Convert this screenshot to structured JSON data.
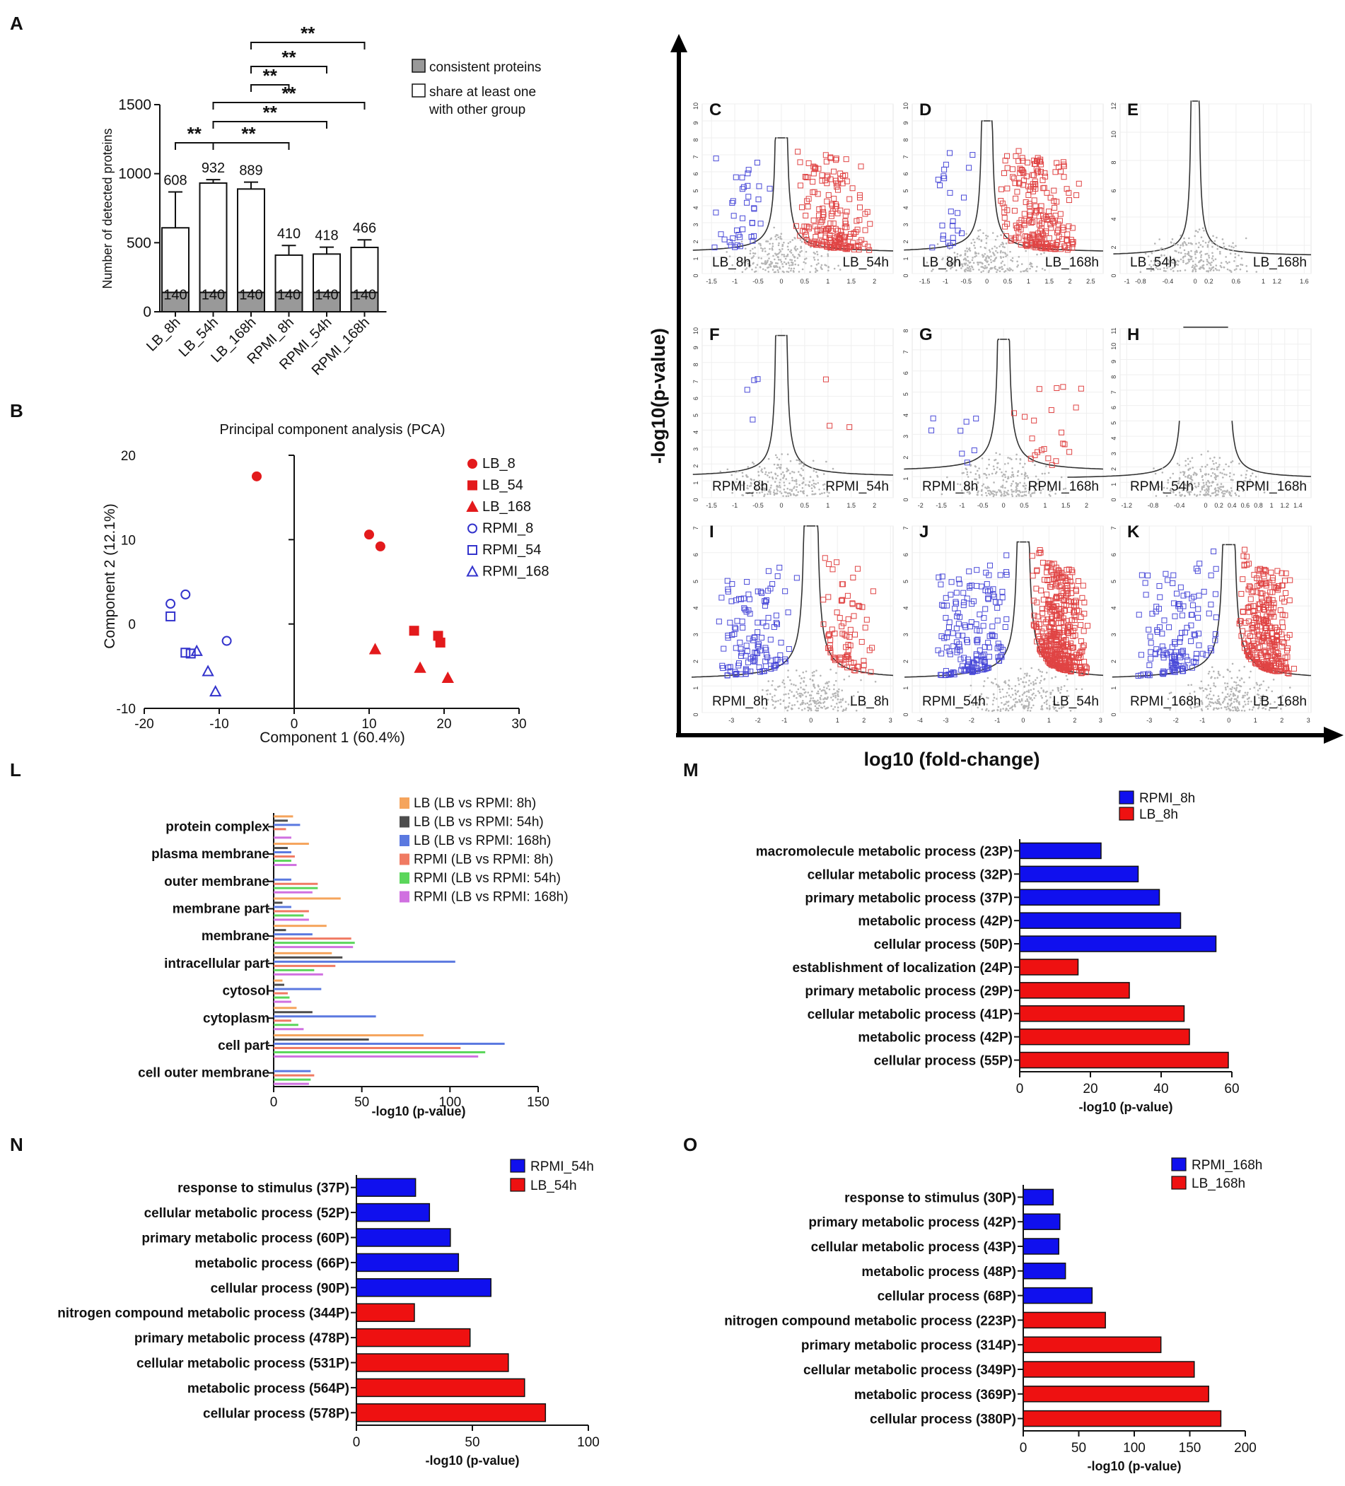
{
  "chart_data": [
    {
      "panel": "A",
      "type": "bar",
      "ylabel": "Number of detected proteins",
      "ylim": [
        0,
        1500
      ],
      "yticks": [
        0,
        500,
        1000,
        1500
      ],
      "categories": [
        "LB_8h",
        "LB_54h",
        "LB_168h",
        "RPMI_8h",
        "RPMI_54h",
        "RPMI_168h"
      ],
      "totals": [
        608,
        932,
        889,
        410,
        418,
        466
      ],
      "total_labels": [
        "608",
        "932",
        "889",
        "410",
        "418",
        "466"
      ],
      "errors": [
        260,
        25,
        50,
        70,
        50,
        55
      ],
      "consistent": [
        140,
        140,
        140,
        140,
        140,
        140
      ],
      "consistent_labels": [
        "140",
        "140",
        "140",
        "140",
        "140",
        "140"
      ],
      "legend": [
        "consistent proteins",
        "share at least one\nwith other group"
      ],
      "significance": [
        {
          "from": 1,
          "to": 5,
          "label": "**"
        },
        {
          "from": 1,
          "to": 4,
          "label": "**"
        },
        {
          "from": 1,
          "to": 3,
          "label": "**"
        },
        {
          "from": 0,
          "to": 5,
          "label": "**"
        },
        {
          "from": 0,
          "to": 4,
          "label": "**"
        },
        {
          "from": 0,
          "to": 1,
          "label": "**"
        },
        {
          "from": 1,
          "to": 3,
          "label": "**"
        }
      ],
      "colors": {
        "consistent": "#999999",
        "share": "#ffffff"
      }
    },
    {
      "panel": "B",
      "type": "scatter",
      "title": "Principal component analysis (PCA)",
      "xlabel": "Component 1 (60.4%)",
      "ylabel": "Component 2 (12.1%)",
      "xlim": [
        -20,
        30
      ],
      "ylim": [
        -10,
        20
      ],
      "xticks": [
        -20,
        -10,
        0,
        10,
        20,
        30
      ],
      "yticks": [
        -10,
        0,
        10,
        20
      ],
      "series": [
        {
          "name": "LB_8",
          "marker": "circle",
          "filled": true,
          "color": "#e31a1c",
          "points": [
            [
              -5,
              17.5
            ],
            [
              10,
              10.6
            ],
            [
              11.5,
              9.2
            ]
          ]
        },
        {
          "name": "LB_54",
          "marker": "square",
          "filled": true,
          "color": "#e31a1c",
          "points": [
            [
              16,
              -0.8
            ],
            [
              19.2,
              -1.4
            ],
            [
              19.5,
              -2.2
            ]
          ]
        },
        {
          "name": "LB_168",
          "marker": "triangle",
          "filled": true,
          "color": "#e31a1c",
          "points": [
            [
              10.8,
              -3
            ],
            [
              16.8,
              -5.2
            ],
            [
              20.5,
              -6.4
            ]
          ]
        },
        {
          "name": "RPMI_8",
          "marker": "circle",
          "filled": false,
          "color": "#3333cc",
          "points": [
            [
              -16.5,
              2.4
            ],
            [
              -14.5,
              3.5
            ],
            [
              -9,
              -2
            ]
          ]
        },
        {
          "name": "RPMI_54",
          "marker": "square",
          "filled": false,
          "color": "#3333cc",
          "points": [
            [
              -16.5,
              0.9
            ],
            [
              -14.5,
              -3.4
            ],
            [
              -13.8,
              -3.5
            ]
          ]
        },
        {
          "name": "RPMI_168",
          "marker": "triangle",
          "filled": false,
          "color": "#3333cc",
          "points": [
            [
              -13,
              -3.2
            ],
            [
              -11.5,
              -5.6
            ],
            [
              -10.5,
              -8
            ]
          ]
        }
      ]
    },
    {
      "panel": "C-K",
      "type": "scatter",
      "subtype": "volcano",
      "xlabel": "log10 (fold-change)",
      "ylabel": "-log10(p-value)",
      "panels": [
        {
          "letter": "C",
          "left": "LB_8h",
          "right": "LB_54h",
          "xlim": [
            -1.7,
            2.4
          ],
          "ylim": [
            0,
            10
          ],
          "xticks": [
            "-1.5",
            "-1",
            "-0.5",
            "0",
            "0.5",
            "1",
            "1.5",
            "2"
          ],
          "xvals": [
            -1.5,
            -1,
            -0.5,
            0,
            0.5,
            1,
            1.5,
            2
          ],
          "yticks": [
            "0",
            "1",
            "2",
            "3",
            "4",
            "5",
            "6",
            "7",
            "8",
            "9",
            "10"
          ],
          "cap": 8,
          "fc0": 0.1,
          "blue": 40,
          "red": 200
        },
        {
          "letter": "D",
          "left": "LB_8h",
          "right": "LB_168h",
          "xlim": [
            -1.8,
            2.8
          ],
          "ylim": [
            0,
            10
          ],
          "xticks": [
            "-1.5",
            "-1",
            "-0.5",
            "0",
            "0.5",
            "1",
            "1.5",
            "2",
            "2.5"
          ],
          "xvals": [
            -1.5,
            -1,
            -0.5,
            0,
            0.5,
            1,
            1.5,
            2,
            2.5
          ],
          "yticks": [
            "0",
            "1",
            "2",
            "3",
            "4",
            "5",
            "6",
            "7",
            "8",
            "9",
            "10"
          ],
          "cap": 9,
          "fc0": 0.1,
          "blue": 25,
          "red": 230
        },
        {
          "letter": "E",
          "left": "LB_54h",
          "right": "LB_168h",
          "xlim": [
            -1.1,
            1.7
          ],
          "ylim": [
            0,
            12
          ],
          "xticks": [
            "-1",
            "-0.8",
            "-0.4",
            "0",
            "0.2",
            "0.6",
            "1",
            "1.2",
            "1.6"
          ],
          "xvals": [
            -1,
            -0.8,
            -0.4,
            0,
            0.2,
            0.6,
            1,
            1.2,
            1.6
          ],
          "yticks": [
            "0",
            "2",
            "4",
            "6",
            "8",
            "10",
            "12"
          ],
          "cap": 12.2,
          "fc0": 0.05,
          "blue": 0,
          "red": 0
        },
        {
          "letter": "F",
          "left": "RPMI_8h",
          "right": "RPMI_54h",
          "xlim": [
            -1.7,
            2.4
          ],
          "ylim": [
            0,
            10
          ],
          "xticks": [
            "-1.5",
            "-1",
            "-0.5",
            "0",
            "0.5",
            "1",
            "1.5",
            "2"
          ],
          "xvals": [
            -1.5,
            -1,
            -0.5,
            0,
            0.5,
            1,
            1.5,
            2
          ],
          "yticks": [
            "0",
            "1",
            "2",
            "3",
            "4",
            "5",
            "6",
            "7",
            "8",
            "9",
            "10"
          ],
          "cap": 9.6,
          "fc0": 0.1,
          "blue": 4,
          "red": 3
        },
        {
          "letter": "G",
          "left": "RPMI_8h",
          "right": "RPMI_168h",
          "xlim": [
            -2.2,
            2.4
          ],
          "ylim": [
            0,
            8
          ],
          "xticks": [
            "-2",
            "-1.5",
            "-1",
            "-0.5",
            "0",
            "0.5",
            "1",
            "1.5",
            "2"
          ],
          "xvals": [
            -2,
            -1.5,
            -1,
            -0.5,
            0,
            0.5,
            1,
            1.5,
            2
          ],
          "yticks": [
            "0",
            "1",
            "2",
            "3",
            "4",
            "5",
            "6",
            "7",
            "8"
          ],
          "cap": 7.5,
          "fc0": 0.1,
          "blue": 8,
          "red": 22
        },
        {
          "letter": "H",
          "left": "RPMI_54h",
          "right": "RPMI_168h",
          "xlim": [
            -1.3,
            1.6
          ],
          "ylim": [
            0,
            11
          ],
          "xticks": [
            "-1.2",
            "-0.8",
            "-0.4",
            "0",
            "0.2",
            "0.4",
            "0.6",
            "0.8",
            "1",
            "1.2",
            "1.4"
          ],
          "xvals": [
            -1.2,
            -0.8,
            -0.4,
            0,
            0.2,
            0.4,
            0.6,
            0.8,
            1,
            1.2,
            1.4
          ],
          "yticks": [
            "0",
            "1",
            "2",
            "3",
            "4",
            "5",
            "6",
            "7",
            "8",
            "9",
            "10",
            "11"
          ],
          "cap": 11.1,
          "fc0": 0.4,
          "blue": 0,
          "red": 0
        },
        {
          "letter": "I",
          "left": "RPMI_8h",
          "right": "LB_8h",
          "xlim": [
            -4.1,
            3.1
          ],
          "ylim": [
            0,
            7
          ],
          "xticks": [
            "-3",
            "-2",
            "-1",
            "0",
            "1",
            "2",
            "3"
          ],
          "xvals": [
            -3,
            -2,
            -1,
            0,
            1,
            2,
            3
          ],
          "yticks": [
            "0",
            "1",
            "2",
            "3",
            "4",
            "5",
            "6",
            "7"
          ],
          "cap": 7,
          "fc0": 0.2,
          "blue": 130,
          "red": 80
        },
        {
          "letter": "J",
          "left": "RPMI_54h",
          "right": "LB_54h",
          "xlim": [
            -4.3,
            3.1
          ],
          "ylim": [
            0,
            7
          ],
          "xticks": [
            "-4",
            "-3",
            "-2",
            "-1",
            "0",
            "1",
            "2",
            "3"
          ],
          "xvals": [
            -4,
            -3,
            -2,
            -1,
            0,
            1,
            2,
            3
          ],
          "yticks": [
            "0",
            "1",
            "2",
            "3",
            "4",
            "5",
            "6",
            "7"
          ],
          "cap": 6.4,
          "fc0": 0.15,
          "blue": 180,
          "red": 420
        },
        {
          "letter": "K",
          "left": "RPMI_168h",
          "right": "LB_168h",
          "xlim": [
            -4.1,
            3.1
          ],
          "ylim": [
            0,
            7
          ],
          "xticks": [
            "-3",
            "-2",
            "-1",
            "0",
            "1",
            "2",
            "3"
          ],
          "xvals": [
            -3,
            -2,
            -1,
            0,
            1,
            2,
            3
          ],
          "yticks": [
            "0",
            "1",
            "2",
            "3",
            "4",
            "5",
            "6",
            "7"
          ],
          "cap": 6.3,
          "fc0": 0.15,
          "blue": 140,
          "red": 300
        }
      ]
    },
    {
      "panel": "L",
      "type": "bar",
      "orientation": "horizontal",
      "xlabel": "-log10 (p-value)",
      "xlim": [
        0,
        150
      ],
      "xticks": [
        0,
        50,
        100,
        150
      ],
      "categories": [
        "protein complex",
        "plasma membrane",
        "outer membrane",
        "membrane part",
        "membrane",
        "intracellular part",
        "cytosol",
        "cytoplasm",
        "cell part",
        "cell outer membrane"
      ],
      "series": [
        {
          "name": "LB (LB vs RPMI: 8h)",
          "color": "#f5a45c",
          "values": [
            11,
            20,
            0,
            38,
            30,
            33,
            5,
            13,
            85,
            0
          ]
        },
        {
          "name": "LB (LB vs RPMI: 54h)",
          "color": "#4d4d4d",
          "values": [
            8,
            8,
            0,
            5,
            7,
            39,
            6,
            22,
            54,
            0
          ]
        },
        {
          "name": "LB (LB vs RPMI: 168h)",
          "color": "#5b79e0",
          "values": [
            15,
            10,
            10,
            10,
            22,
            103,
            27,
            58,
            131,
            21
          ]
        },
        {
          "name": "RPMI (LB vs RPMI: 8h)",
          "color": "#f07a62",
          "values": [
            7,
            12,
            25,
            20,
            44,
            35,
            8,
            10,
            106,
            23
          ]
        },
        {
          "name": "RPMI (LB vs RPMI: 54h)",
          "color": "#5bd65b",
          "values": [
            0,
            10,
            25,
            17,
            46,
            23,
            9,
            14,
            120,
            21
          ]
        },
        {
          "name": "RPMI (LB vs RPMI: 168h)",
          "color": "#d070e0",
          "values": [
            10,
            13,
            22,
            20,
            45,
            28,
            10,
            17,
            116,
            20
          ]
        }
      ]
    },
    {
      "panel": "M",
      "type": "bar",
      "orientation": "horizontal",
      "xlabel": "-log10 (p-value)",
      "xlim": [
        0,
        60
      ],
      "xticks": [
        0,
        20,
        40,
        60
      ],
      "legend": [
        "RPMI_8h",
        "LB_8h"
      ],
      "categories": [
        "macromolecule metabolic process (23P)",
        "cellular metabolic process (32P)",
        "primary metabolic process (37P)",
        "metabolic process (42P)",
        "cellular process (50P)",
        "establishment of localization (24P)",
        "primary metabolic process (29P)",
        "cellular metabolic process (41P)",
        "metabolic process (42P)",
        "cellular process (55P)"
      ],
      "values": [
        23,
        33.5,
        39.5,
        45.5,
        55.5,
        16.5,
        31,
        46.5,
        48,
        59
      ],
      "groups": [
        "RPMI_8h",
        "RPMI_8h",
        "RPMI_8h",
        "RPMI_8h",
        "RPMI_8h",
        "LB_8h",
        "LB_8h",
        "LB_8h",
        "LB_8h",
        "LB_8h"
      ]
    },
    {
      "panel": "N",
      "type": "bar",
      "orientation": "horizontal",
      "xlabel": "-log10 (p-value)",
      "xlim": [
        0,
        100
      ],
      "xticks": [
        0,
        50,
        100
      ],
      "legend": [
        "RPMI_54h",
        "LB_54h"
      ],
      "categories": [
        "response to stimulus (37P)",
        "cellular metabolic process (52P)",
        "primary metabolic process (60P)",
        "metabolic process (66P)",
        "cellular process (90P)",
        "nitrogen compound metabolic process (344P)",
        "primary metabolic process (478P)",
        "cellular metabolic process (531P)",
        "metabolic process (564P)",
        "cellular process (578P)"
      ],
      "values": [
        25.5,
        31.5,
        40.5,
        44,
        58,
        25,
        49,
        65.5,
        72.5,
        81.5
      ],
      "groups": [
        "RPMI_54h",
        "RPMI_54h",
        "RPMI_54h",
        "RPMI_54h",
        "RPMI_54h",
        "LB_54h",
        "LB_54h",
        "LB_54h",
        "LB_54h",
        "LB_54h"
      ]
    },
    {
      "panel": "O",
      "type": "bar",
      "orientation": "horizontal",
      "xlabel": "-log10 (p-value)",
      "xlim": [
        0,
        200
      ],
      "xticks": [
        0,
        50,
        100,
        150,
        200
      ],
      "legend": [
        "RPMI_168h",
        "LB_168h"
      ],
      "categories": [
        "response to stimulus (30P)",
        "primary metabolic process (42P)",
        "cellular metabolic process (43P)",
        "metabolic process (48P)",
        "cellular process (68P)",
        "nitrogen compound metabolic process (223P)",
        "primary metabolic process (314P)",
        "cellular metabolic process (349P)",
        "metabolic process (369P)",
        "cellular process (380P)"
      ],
      "values": [
        27,
        33,
        32,
        38,
        62,
        74,
        124,
        154,
        167,
        178
      ],
      "groups": [
        "RPMI_168h",
        "RPMI_168h",
        "RPMI_168h",
        "RPMI_168h",
        "RPMI_168h",
        "LB_168h",
        "LB_168h",
        "LB_168h",
        "LB_168h",
        "LB_168h"
      ]
    }
  ],
  "panel_letters": [
    "A",
    "B",
    "L",
    "M",
    "N",
    "O"
  ],
  "colors": {
    "blue": "#1010ee",
    "red": "#ee1111",
    "volcano_blue": "#4a4ad8",
    "volcano_red": "#e04444",
    "grey": "#b5b5b5"
  }
}
